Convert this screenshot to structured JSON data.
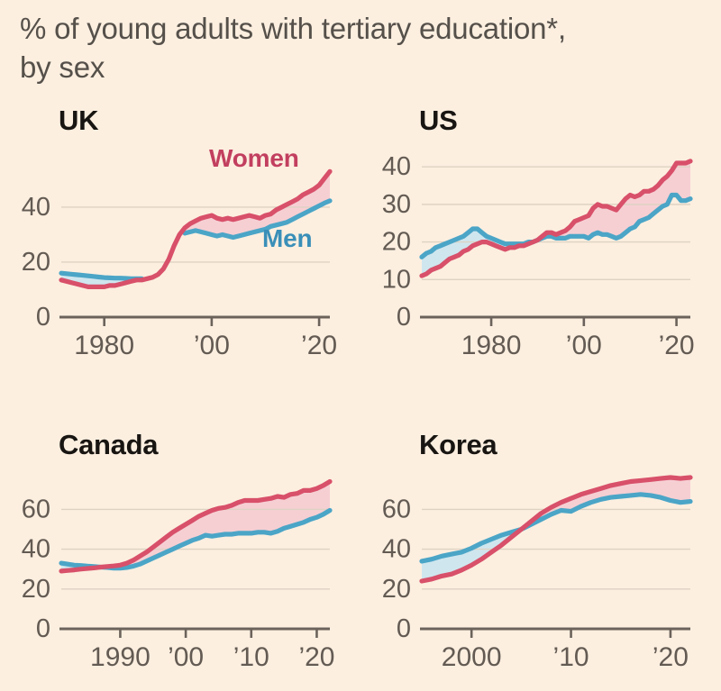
{
  "title": {
    "line1": "% of young adults with tertiary education*,",
    "line2": "by sex"
  },
  "colors": {
    "background": "#fcefe0",
    "women_line": "#d8506a",
    "women_label": "#c23f5f",
    "men_line": "#4ba5c7",
    "men_label": "#3a8fb8",
    "women_fill": "#f6cfd3",
    "men_fill": "#cfe6ee",
    "grid": "#ded2c3",
    "axis": "#6b635b",
    "tick_text": "#635b53",
    "panel_title": "#181512",
    "title_text": "#55504a"
  },
  "chart_data": [
    {
      "type": "line",
      "title": "UK",
      "xlim": [
        1972,
        2022
      ],
      "ylim": [
        0,
        57
      ],
      "x_start": 1972,
      "x_step": 1,
      "x_ticks": [
        {
          "v": 1980,
          "label": "1980"
        },
        {
          "v": 2000,
          "label": "’00"
        },
        {
          "v": 2020,
          "label": "’20"
        }
      ],
      "y_ticks": [
        0,
        20,
        40
      ],
      "series": [
        {
          "name": "Women",
          "values": [
            13.5,
            13,
            12.5,
            12,
            11.5,
            11,
            11,
            11,
            11,
            11.5,
            11.5,
            12,
            12.5,
            13,
            13.5,
            13.5,
            14,
            14.5,
            15.5,
            17.5,
            21,
            26,
            30,
            32.5,
            34,
            35,
            36,
            36.5,
            37,
            36,
            35.5,
            36,
            35.5,
            36,
            36.5,
            37,
            36.5,
            36,
            37,
            37.5,
            39,
            40,
            41,
            42,
            43,
            44.5,
            45.5,
            46.5,
            48,
            50.5,
            53
          ]
        },
        {
          "name": "Men",
          "values": [
            16,
            15.8,
            15.6,
            15.4,
            15.2,
            15,
            14.8,
            14.6,
            14.4,
            14.3,
            14.2,
            14.2,
            14.1,
            14,
            14,
            14,
            null,
            null,
            null,
            null,
            null,
            null,
            null,
            30.5,
            31,
            31.5,
            31,
            30.5,
            30,
            29.5,
            30,
            29.5,
            29,
            29.5,
            30,
            30.5,
            31,
            31.5,
            32,
            33,
            33.5,
            34,
            34.5,
            35.5,
            36.5,
            37.5,
            38.5,
            39.5,
            40.5,
            41.5,
            42.3
          ]
        }
      ],
      "annotations": [
        {
          "text": "Women"
        },
        {
          "text": "Men"
        }
      ]
    },
    {
      "type": "line",
      "title": "US",
      "xlim": [
        1965,
        2023
      ],
      "ylim": [
        0,
        44
      ],
      "x_start": 1965,
      "x_step": 1,
      "x_ticks": [
        {
          "v": 1980,
          "label": "1980"
        },
        {
          "v": 2000,
          "label": "’00"
        },
        {
          "v": 2020,
          "label": "’20"
        }
      ],
      "y_ticks": [
        0,
        10,
        20,
        30,
        40
      ],
      "series": [
        {
          "name": "Women",
          "values": [
            11,
            11.5,
            12.5,
            13,
            13.5,
            14.5,
            15.5,
            16,
            16.5,
            17.5,
            18,
            19,
            19.5,
            20,
            20,
            19.5,
            19,
            18.5,
            18,
            18.5,
            18.5,
            19,
            19,
            19.5,
            20,
            20.5,
            21.5,
            22.5,
            22.5,
            22,
            22.5,
            23,
            24,
            25.5,
            26,
            26.5,
            27,
            29,
            30,
            29.5,
            29.5,
            29,
            28.5,
            30,
            31.5,
            32.5,
            32,
            32.5,
            33.5,
            33.5,
            34,
            35,
            36.5,
            37.5,
            39,
            41,
            41,
            41,
            41.5
          ]
        },
        {
          "name": "Men",
          "values": [
            16,
            17,
            17.5,
            18.5,
            19,
            19.5,
            20,
            20.5,
            21,
            21.5,
            22.5,
            23.5,
            23.5,
            22.5,
            21.5,
            21,
            20.5,
            20,
            19.5,
            19.5,
            19.5,
            19.5,
            19.5,
            20,
            20,
            20.5,
            21,
            21.5,
            21.5,
            21,
            21,
            21,
            21.5,
            21.5,
            21.5,
            21.5,
            21,
            22,
            22.5,
            22,
            22,
            21.5,
            21,
            21.5,
            22.5,
            23.5,
            24,
            25.5,
            26,
            26.5,
            27.5,
            28.5,
            29.5,
            30,
            32.5,
            32.5,
            31,
            31,
            31.5
          ]
        }
      ],
      "annotations": []
    },
    {
      "type": "line",
      "title": "Canada",
      "xlim": [
        1981,
        2022
      ],
      "ylim": [
        0,
        80
      ],
      "x_start": 1981,
      "x_step": 1,
      "x_ticks": [
        {
          "v": 1990,
          "label": "1990"
        },
        {
          "v": 2000,
          "label": "’00"
        },
        {
          "v": 2010,
          "label": "’10"
        },
        {
          "v": 2020,
          "label": "’20"
        }
      ],
      "y_ticks": [
        0,
        20,
        40,
        60
      ],
      "series": [
        {
          "name": "Women",
          "values": [
            29,
            29.3,
            29.6,
            30,
            30.3,
            30.6,
            31,
            31.3,
            31.6,
            32,
            33,
            34.5,
            36.5,
            38.5,
            41,
            43.5,
            46,
            48.5,
            50.5,
            52.5,
            54.5,
            56.5,
            58,
            59.5,
            60.5,
            61,
            62,
            63.5,
            64.5,
            64.5,
            64.5,
            65,
            65.5,
            66.5,
            66,
            67.5,
            68,
            69.5,
            69.5,
            70.5,
            72,
            74
          ]
        },
        {
          "name": "Men",
          "values": [
            33,
            32.5,
            32,
            31.8,
            31.5,
            31.3,
            31,
            30.8,
            30.5,
            30.5,
            30.8,
            31.5,
            32.5,
            34,
            35.5,
            37,
            38.5,
            40,
            41.5,
            43,
            44.5,
            45.5,
            47,
            46.5,
            47,
            47.5,
            47.5,
            48,
            48,
            48,
            48.5,
            48.5,
            48,
            49,
            50.5,
            51.5,
            52.5,
            53.5,
            55,
            56,
            57.5,
            59.5
          ]
        }
      ],
      "annotations": []
    },
    {
      "type": "line",
      "title": "Korea",
      "xlim": [
        1995,
        2022
      ],
      "ylim": [
        0,
        80
      ],
      "x_start": 1995,
      "x_step": 1,
      "x_ticks": [
        {
          "v": 2000,
          "label": "2000"
        },
        {
          "v": 2010,
          "label": "’10"
        },
        {
          "v": 2020,
          "label": "’20"
        }
      ],
      "y_ticks": [
        0,
        20,
        40,
        60
      ],
      "series": [
        {
          "name": "Women",
          "values": [
            24,
            25,
            26.5,
            27.5,
            29.5,
            32,
            35,
            38.5,
            42,
            46,
            50,
            54,
            58,
            61,
            63.5,
            65.5,
            67.5,
            69,
            70.5,
            72,
            73,
            74,
            74.5,
            75,
            75.5,
            76,
            75.5,
            76
          ]
        },
        {
          "name": "Men",
          "values": [
            34,
            35,
            36.5,
            37.5,
            38.5,
            40.5,
            43,
            45,
            47,
            48.5,
            50,
            52.5,
            55,
            57.5,
            59.5,
            59,
            61.5,
            63.5,
            65,
            66,
            66.5,
            67,
            67.5,
            67,
            66,
            64.5,
            63.5,
            64
          ]
        }
      ],
      "annotations": []
    }
  ]
}
